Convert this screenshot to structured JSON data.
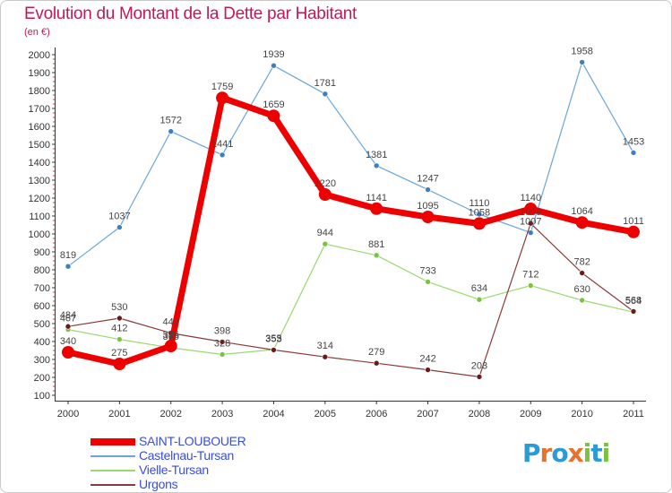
{
  "title": "Evolution du Montant de la Dette par Habitant",
  "unit": "(en €)",
  "logo": {
    "text": "Proxiti",
    "letters": [
      "P",
      "r",
      "o",
      "x",
      "i",
      "t",
      "i"
    ],
    "colors": [
      "#2b9bd8",
      "#e8712b",
      "#2b9bd8",
      "#e8712b",
      "#7cc242",
      "#2b9bd8",
      "#7cc242"
    ]
  },
  "chart_data": {
    "type": "line",
    "title": "Evolution du Montant de la Dette par Habitant",
    "ylabel": "(en €)",
    "xlabel": "",
    "x": [
      "2000",
      "2001",
      "2002",
      "2003",
      "2004",
      "2005",
      "2006",
      "2007",
      "2008",
      "2009",
      "2010",
      "2011"
    ],
    "ylim": [
      100,
      2000
    ],
    "yticks": [
      100,
      200,
      300,
      400,
      500,
      600,
      700,
      800,
      900,
      1000,
      1100,
      1200,
      1300,
      1400,
      1500,
      1600,
      1700,
      1800,
      1900,
      2000
    ],
    "grid": false,
    "legend_position": "bottom-left",
    "series": [
      {
        "name": "SAINT-LOUBOUER",
        "color": "#ee0000",
        "marker_color": "#ee0000",
        "width": 7,
        "marker": 7,
        "values": [
          340,
          275,
          375,
          1759,
          1659,
          1220,
          1141,
          1095,
          1058,
          1140,
          1064,
          1011
        ]
      },
      {
        "name": "Castelnau-Tursan",
        "color": "#6aa5d8",
        "marker_color": "#3b7fc4",
        "width": 1.2,
        "marker": 3,
        "values": [
          819,
          1037,
          1572,
          1441,
          1939,
          1781,
          1381,
          1247,
          1110,
          1007,
          1958,
          1453
        ]
      },
      {
        "name": "Vielle-Tursan",
        "color": "#9ad870",
        "marker_color": "#7cc242",
        "width": 1.2,
        "marker": 3,
        "values": [
          467,
          412,
          365,
          328,
          355,
          944,
          881,
          733,
          634,
          712,
          630,
          564
        ]
      },
      {
        "name": "Urgons",
        "color": "#8b3a3a",
        "marker_color": "#6b1a1a",
        "width": 1.2,
        "marker": 3,
        "values": [
          484,
          530,
          447,
          398,
          353,
          314,
          279,
          242,
          203,
          1059,
          782,
          568
        ]
      }
    ]
  }
}
